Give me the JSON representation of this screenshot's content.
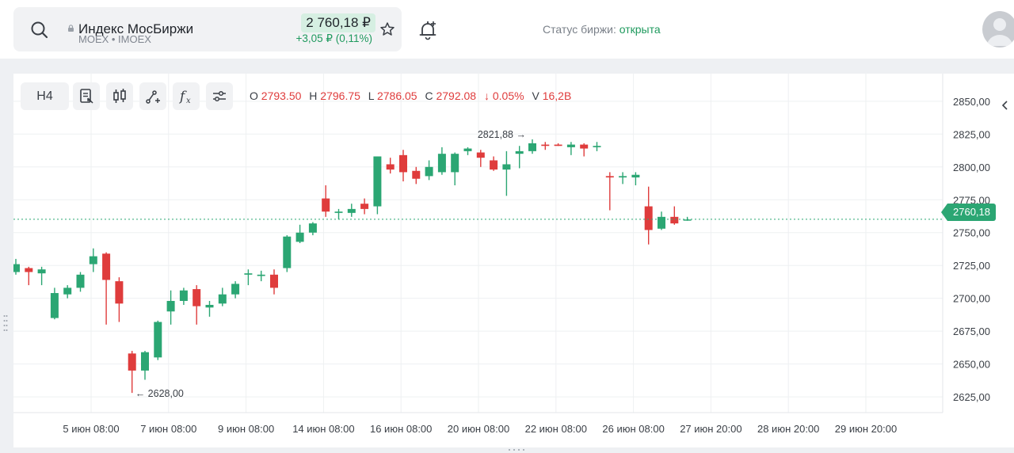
{
  "header": {
    "ticker_name": "Индекс МосБиржи",
    "ticker_sub": "MOEX • IMOEX",
    "price": "2 760,18 ₽",
    "change": "+3,05 ₽ (0,11%)",
    "status_label": "Статус биржи:",
    "status_value": "открыта",
    "icons": [
      "search-icon",
      "lock-icon",
      "star-icon",
      "bell-plus-icon",
      "avatar"
    ]
  },
  "toolbar": {
    "timeframe": "H4",
    "buttons": [
      "notes-icon",
      "candlestick-icon",
      "drawing-tool-icon",
      "function-icon",
      "settings-sliders-icon"
    ]
  },
  "ohlc": {
    "o_label": "O",
    "o": "2793.50",
    "h_label": "H",
    "h": "2796.75",
    "l_label": "L",
    "l": "2786.05",
    "c_label": "C",
    "c": "2792.08",
    "change": "↓ 0.05%",
    "v_label": "V",
    "v": "16,2B"
  },
  "current_price_label": "2760,18",
  "colors": {
    "up": "#2ba673",
    "down": "#df3c3c",
    "accent": "#1f9a5e"
  },
  "chart_data": {
    "type": "candlestick",
    "x_tick_labels": [
      "5 июн 08:00",
      "7 июн 08:00",
      "9 июн 08:00",
      "14 июн 08:00",
      "16 июн 08:00",
      "20 июн 08:00",
      "22 июн 08:00",
      "26 июн 08:00",
      "27 июн 20:00",
      "28 июн 20:00",
      "29 июн 20:00"
    ],
    "y_tick_labels": [
      "2850,00",
      "2825,00",
      "2800,00",
      "2775,00",
      "2750,00",
      "2725,00",
      "2700,00",
      "2675,00",
      "2650,00",
      "2625,00"
    ],
    "ylim": [
      2613,
      2871
    ],
    "annotations": {
      "high": "2821,88",
      "low": "2628,00"
    },
    "current_price": 2760.18,
    "candles": [
      {
        "o": 2720,
        "h": 2730,
        "l": 2718,
        "c": 2726
      },
      {
        "o": 2723,
        "h": 2724,
        "l": 2710,
        "c": 2720
      },
      {
        "o": 2719,
        "h": 2724,
        "l": 2710,
        "c": 2722
      },
      {
        "o": 2685,
        "h": 2708,
        "l": 2684,
        "c": 2704
      },
      {
        "o": 2703,
        "h": 2710,
        "l": 2700,
        "c": 2708
      },
      {
        "o": 2708,
        "h": 2720,
        "l": 2705,
        "c": 2718
      },
      {
        "o": 2726,
        "h": 2738,
        "l": 2720,
        "c": 2732
      },
      {
        "o": 2734,
        "h": 2735,
        "l": 2680,
        "c": 2714
      },
      {
        "o": 2713,
        "h": 2716,
        "l": 2682,
        "c": 2696
      },
      {
        "o": 2658,
        "h": 2660,
        "l": 2628,
        "c": 2645
      },
      {
        "o": 2645,
        "h": 2660,
        "l": 2638,
        "c": 2659
      },
      {
        "o": 2655,
        "h": 2683,
        "l": 2653,
        "c": 2682
      },
      {
        "o": 2690,
        "h": 2706,
        "l": 2680,
        "c": 2698
      },
      {
        "o": 2698,
        "h": 2708,
        "l": 2695,
        "c": 2706
      },
      {
        "o": 2707,
        "h": 2710,
        "l": 2680,
        "c": 2694
      },
      {
        "o": 2693,
        "h": 2698,
        "l": 2686,
        "c": 2695
      },
      {
        "o": 2696,
        "h": 2708,
        "l": 2694,
        "c": 2703
      },
      {
        "o": 2703,
        "h": 2713,
        "l": 2700,
        "c": 2711
      },
      {
        "o": 2718,
        "h": 2722,
        "l": 2710,
        "c": 2719
      },
      {
        "o": 2717,
        "h": 2721,
        "l": 2713,
        "c": 2718
      },
      {
        "o": 2718,
        "h": 2722,
        "l": 2703,
        "c": 2708
      },
      {
        "o": 2723,
        "h": 2748,
        "l": 2720,
        "c": 2747
      },
      {
        "o": 2743,
        "h": 2756,
        "l": 2742,
        "c": 2750
      },
      {
        "o": 2750,
        "h": 2758,
        "l": 2748,
        "c": 2757
      },
      {
        "o": 2776,
        "h": 2786,
        "l": 2762,
        "c": 2766
      },
      {
        "o": 2765,
        "h": 2768,
        "l": 2760,
        "c": 2766
      },
      {
        "o": 2765,
        "h": 2772,
        "l": 2762,
        "c": 2768
      },
      {
        "o": 2772,
        "h": 2776,
        "l": 2764,
        "c": 2768
      },
      {
        "o": 2770,
        "h": 2808,
        "l": 2764,
        "c": 2808
      },
      {
        "o": 2802,
        "h": 2807,
        "l": 2795,
        "c": 2798
      },
      {
        "o": 2809,
        "h": 2813,
        "l": 2789,
        "c": 2796
      },
      {
        "o": 2797,
        "h": 2800,
        "l": 2787,
        "c": 2791
      },
      {
        "o": 2793,
        "h": 2805,
        "l": 2790,
        "c": 2800
      },
      {
        "o": 2796,
        "h": 2815,
        "l": 2794,
        "c": 2810
      },
      {
        "o": 2796,
        "h": 2811,
        "l": 2786,
        "c": 2810
      },
      {
        "o": 2812,
        "h": 2815,
        "l": 2809,
        "c": 2814
      },
      {
        "o": 2811,
        "h": 2813,
        "l": 2800,
        "c": 2807
      },
      {
        "o": 2805,
        "h": 2808,
        "l": 2797,
        "c": 2798
      },
      {
        "o": 2798,
        "h": 2812,
        "l": 2778,
        "c": 2802
      },
      {
        "o": 2810,
        "h": 2816,
        "l": 2799,
        "c": 2812
      },
      {
        "o": 2812,
        "h": 2821,
        "l": 2810,
        "c": 2818
      },
      {
        "o": 2817,
        "h": 2819,
        "l": 2813,
        "c": 2816
      },
      {
        "o": 2817,
        "h": 2818,
        "l": 2816,
        "c": 2816
      },
      {
        "o": 2815,
        "h": 2819,
        "l": 2809,
        "c": 2817
      },
      {
        "o": 2817,
        "h": 2818,
        "l": 2808,
        "c": 2814
      },
      {
        "o": 2815,
        "h": 2819,
        "l": 2812,
        "c": 2816
      },
      {
        "o": 2793,
        "h": 2796,
        "l": 2767,
        "c": 2792
      },
      {
        "o": 2792,
        "h": 2796,
        "l": 2787,
        "c": 2793
      },
      {
        "o": 2792,
        "h": 2796,
        "l": 2786,
        "c": 2794
      },
      {
        "o": 2770,
        "h": 2785,
        "l": 2741,
        "c": 2752
      },
      {
        "o": 2753,
        "h": 2766,
        "l": 2752,
        "c": 2762
      },
      {
        "o": 2762,
        "h": 2770,
        "l": 2756,
        "c": 2757
      },
      {
        "o": 2760,
        "h": 2762,
        "l": 2759,
        "c": 2760
      }
    ]
  }
}
